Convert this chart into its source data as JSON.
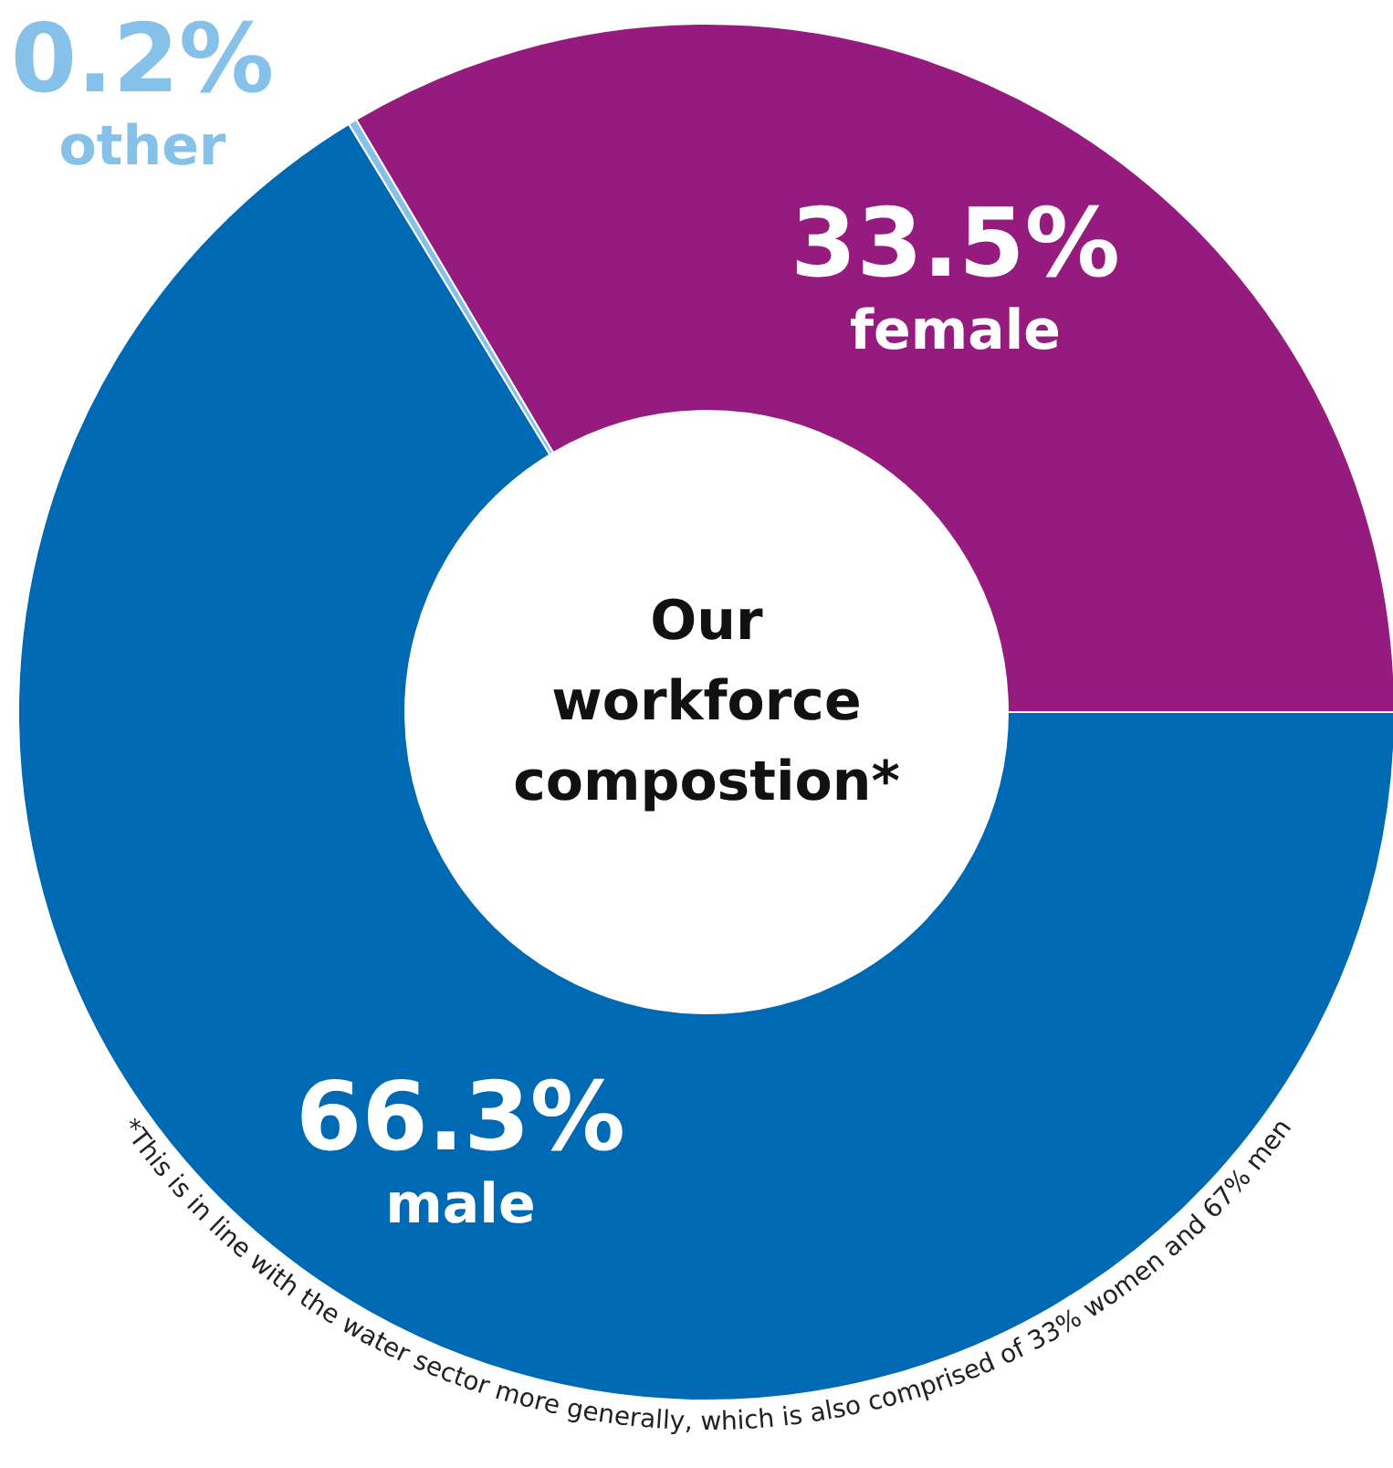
{
  "chart_data": {
    "type": "donut",
    "title": "Our workforce compostion*",
    "categories": [
      "female",
      "male",
      "other"
    ],
    "values": [
      33.5,
      66.3,
      0.2
    ],
    "value_labels": [
      "33.5%",
      "66.3%",
      "0.2%"
    ],
    "colors": [
      "#951b7f",
      "#0069b4",
      "#85c1e9"
    ],
    "annotations": [
      "*This is in line with the water sector more generally, which is also comprised of 33% women and 67% men"
    ]
  }
}
